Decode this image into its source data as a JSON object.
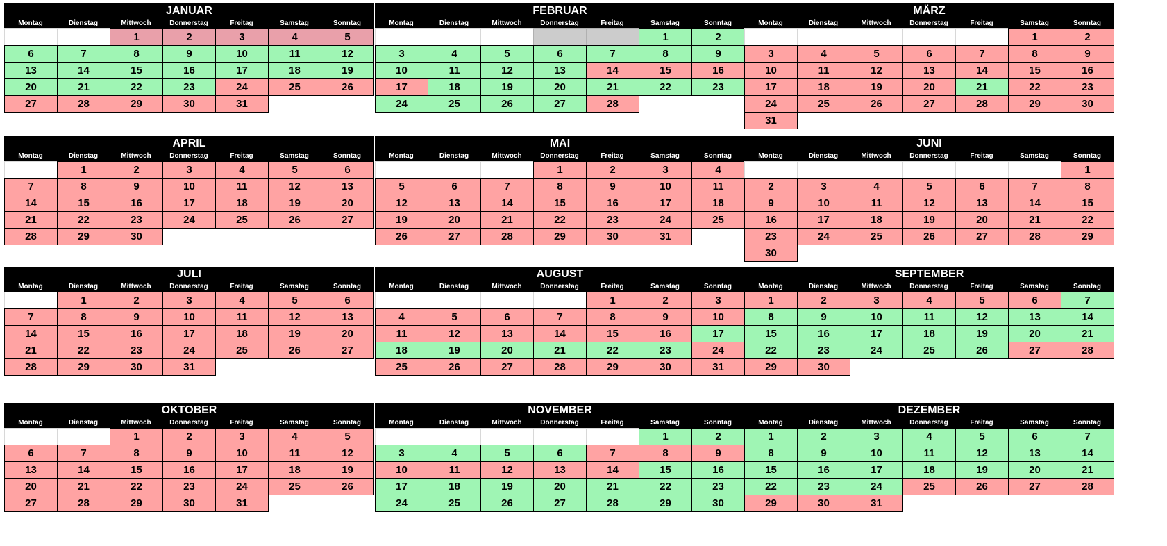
{
  "weekdays": [
    "Montag",
    "Dienstag",
    "Mittwoch",
    "Donnerstag",
    "Freitag",
    "Samstag",
    "Sonntag"
  ],
  "colors": {
    "red": "#ffa3a3",
    "green": "#9ff5b4",
    "pink": "#e9a0aa",
    "gray": "#cccccc",
    "header": "#000000"
  },
  "months": [
    {
      "name": "JANUAR",
      "first_weekday": 2,
      "days": 31,
      "weeks": [
        "bbppppp",
        "ggggggg",
        "ggggggg",
        "ggggrrr",
        "rrrrr"
      ]
    },
    {
      "name": "FEBRUAR",
      "first_weekday": 5,
      "days": 28,
      "weeks": [
        "bbbxxgg",
        "ggggggg",
        "ggggrrr",
        "rgggggg",
        "ggggr"
      ]
    },
    {
      "name": "MÄRZ",
      "first_weekday": 5,
      "days": 31,
      "weeks": [
        "bbbbbrr",
        "rrrrrrr",
        "rrrrrrr",
        "rrrrgrr",
        "rrrrrrr",
        "r"
      ]
    },
    {
      "name": "APRIL",
      "first_weekday": 1,
      "days": 30,
      "weeks": [
        "brrrrrr",
        "rrrrrrr",
        "rrrrrrr",
        "rrrrrrr",
        "rrr"
      ]
    },
    {
      "name": "MAI",
      "first_weekday": 3,
      "days": 31,
      "weeks": [
        "bbbrrrr",
        "rrrrrrr",
        "rrrrrrr",
        "rrrrrrr",
        "rrrrrr"
      ]
    },
    {
      "name": "JUNI",
      "first_weekday": 6,
      "days": 30,
      "weeks": [
        "bbbbbbr",
        "rrrrrrr",
        "rrrrrrr",
        "rrrrrrr",
        "rrrrrrr",
        "r"
      ]
    },
    {
      "name": "JULI",
      "first_weekday": 1,
      "days": 31,
      "weeks": [
        "brrrrrr",
        "rrrrrrr",
        "rrrrrrr",
        "rrrrrrr",
        "rrrr"
      ]
    },
    {
      "name": "AUGUST",
      "first_weekday": 4,
      "days": 31,
      "weeks": [
        "bbbbrrr",
        "rrrrrrr",
        "rrrrrrg",
        "ggggggr",
        "rrrrrrr"
      ]
    },
    {
      "name": "SEPTEMBER",
      "first_weekday": 0,
      "days": 30,
      "weeks": [
        "rrrrrrg",
        "ggggggg",
        "ggggggg",
        "gggggrr",
        "rr"
      ]
    },
    {
      "name": "OKTOBER",
      "first_weekday": 2,
      "days": 31,
      "weeks": [
        "bbrrrrr",
        "rrrrrrr",
        "rrrrrrr",
        "rrrrrrr",
        "rrrrr"
      ]
    },
    {
      "name": "NOVEMBER",
      "first_weekday": 5,
      "days": 30,
      "weeks": [
        "bbbbbgg",
        "ggggrrr",
        "rrrrrgg",
        "ggggggg",
        "ggggggg"
      ]
    },
    {
      "name": "DEZEMBER",
      "first_weekday": 0,
      "days": 31,
      "weeks": [
        "ggggggg",
        "ggggggg",
        "ggggggg",
        "gggrrrr",
        "rrr"
      ]
    }
  ]
}
